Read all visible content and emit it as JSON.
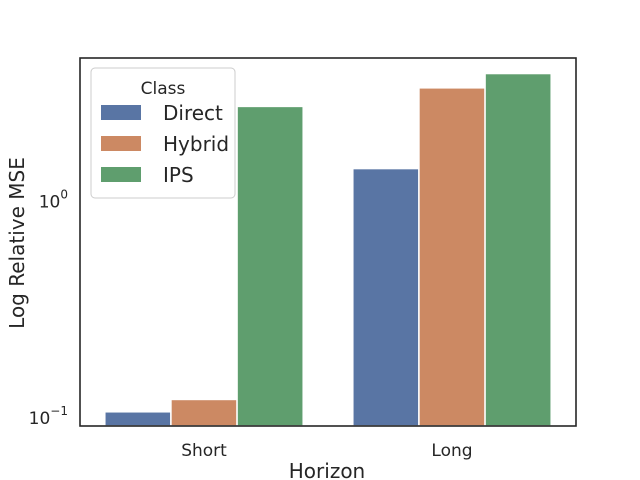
{
  "chart_data": {
    "type": "bar",
    "categories": [
      "Short",
      "Long"
    ],
    "series": [
      {
        "name": "Direct",
        "values": [
          0.107,
          1.42
        ],
        "color": "#5975a4"
      },
      {
        "name": "Hybrid",
        "values": [
          0.122,
          3.35
        ],
        "color": "#cc8963"
      },
      {
        "name": "IPS",
        "values": [
          2.75,
          3.9
        ],
        "color": "#5f9e6e"
      }
    ],
    "xlabel": "Horizon",
    "ylabel": "Log Relative MSE",
    "yscale": "log",
    "ylim": [
      0.092,
      4.6
    ],
    "yticks": [
      {
        "value": 0.1,
        "base": "10",
        "exp": "−1"
      },
      {
        "value": 1,
        "base": "10",
        "exp": "0"
      }
    ],
    "legend": {
      "title": "Class",
      "placement": "top-left"
    },
    "grid": false
  }
}
